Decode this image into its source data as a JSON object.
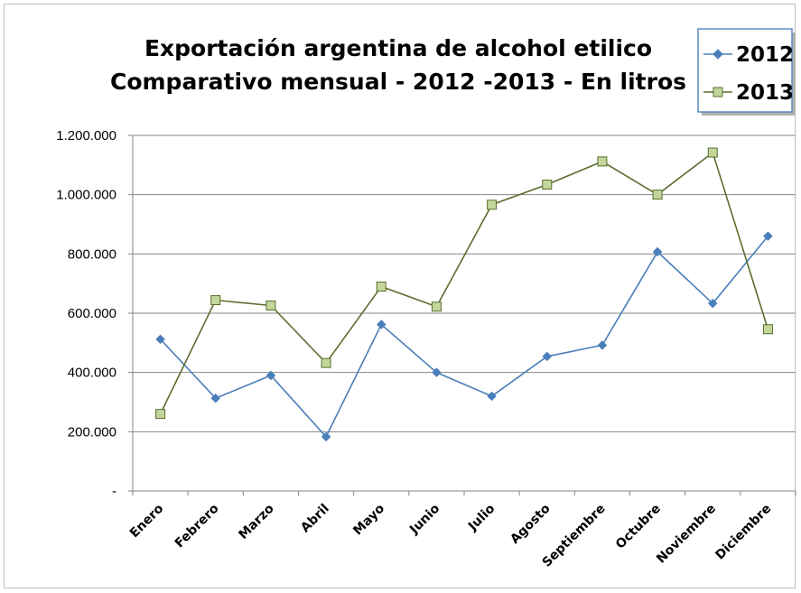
{
  "chart_data": {
    "type": "line",
    "title_lines": [
      "Exportación argentina de alcohol etilico",
      "Comparativo mensual - 2012 -2013 - En litros"
    ],
    "categories": [
      "Enero",
      "Febrero",
      "Marzo",
      "Abril",
      "Mayo",
      "Junio",
      "Julio",
      "Agosto",
      "Septiembre",
      "Octubre",
      "Noviembre",
      "Diciembre"
    ],
    "y_tick_labels": [
      "-",
      "200.000",
      "400.000",
      "600.000",
      "800.000",
      "1.000.000",
      "1.200.000"
    ],
    "ylim": [
      0,
      1200000
    ],
    "y_step": 200000,
    "grid": "horizontal",
    "legend_position": "top-right",
    "series": [
      {
        "name": "2012",
        "color": "#4a7ebb",
        "marker": "diamond",
        "values": [
          512000,
          313000,
          390000,
          183000,
          562000,
          400000,
          320000,
          454000,
          492000,
          807000,
          633000,
          860000
        ]
      },
      {
        "name": "2013",
        "color": "#5a6e2e",
        "marker_fill": "#c3d69b",
        "marker": "square",
        "values": [
          260000,
          644000,
          626000,
          432000,
          690000,
          622000,
          966000,
          1034000,
          1112000,
          1000000,
          1142000,
          546000
        ]
      }
    ]
  }
}
